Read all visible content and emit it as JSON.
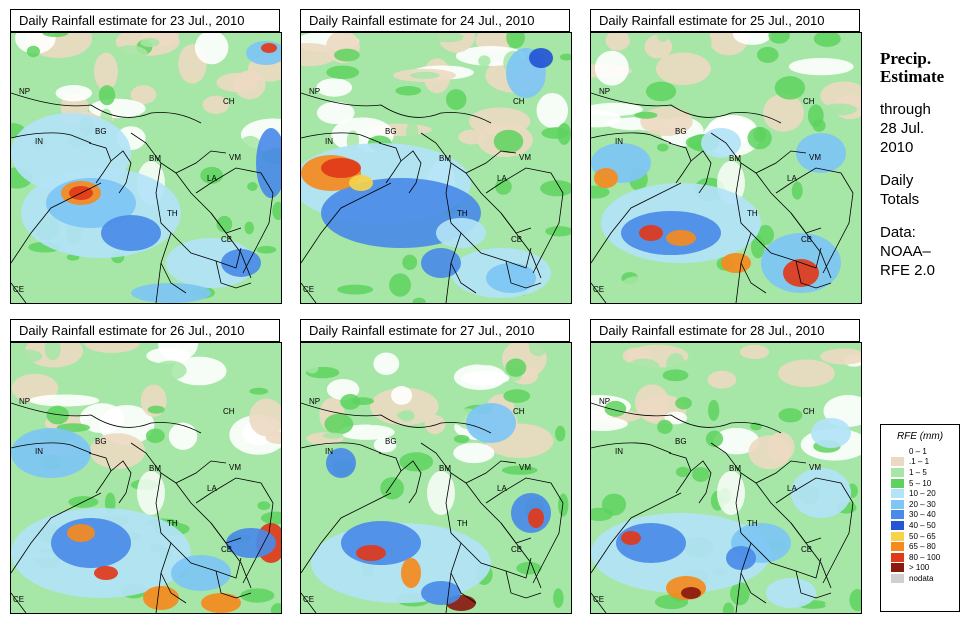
{
  "panels": [
    {
      "title": "Daily Rainfall estimate for  23 Jul., 2010",
      "pattern": 1
    },
    {
      "title": "Daily Rainfall estimate for  24 Jul., 2010",
      "pattern": 2
    },
    {
      "title": "Daily Rainfall estimate for  25 Jul., 2010",
      "pattern": 3
    },
    {
      "title": "Daily Rainfall estimate for  26 Jul., 2010",
      "pattern": 4
    },
    {
      "title": "Daily Rainfall estimate for  27 Jul., 2010",
      "pattern": 5
    },
    {
      "title": "Daily Rainfall estimate for  28 Jul., 2010",
      "pattern": 6
    }
  ],
  "map_labels": {
    "NP": "NP",
    "CH": "CH",
    "IN": "IN",
    "BG": "BG",
    "BM": "BM",
    "VM": "VM",
    "LA": "LA",
    "TH": "TH",
    "CB": "CB",
    "CE": "CE"
  },
  "side": {
    "line1": "Precip.",
    "line2": "Estimate",
    "line3": "through",
    "line4": "28 Jul.",
    "line5": "2010",
    "line6": "Daily",
    "line7": "Totals",
    "line8": "Data:",
    "line9": "NOAA–",
    "line10": "RFE 2.0"
  },
  "legend": {
    "title": "RFE (mm)",
    "items": [
      {
        "label": "0 – 1",
        "color": "#ffffff"
      },
      {
        "label": ".1 – 1",
        "color": "#ecd9c2"
      },
      {
        "label": "1 – 5",
        "color": "#a6e6a6"
      },
      {
        "label": "5 – 10",
        "color": "#5ed25e"
      },
      {
        "label": "10 – 20",
        "color": "#b3e3f7"
      },
      {
        "label": "20 – 30",
        "color": "#7ec6f5"
      },
      {
        "label": "30 – 40",
        "color": "#4a8be8"
      },
      {
        "label": "40 – 50",
        "color": "#2455d4"
      },
      {
        "label": "50 – 65",
        "color": "#f5d34a"
      },
      {
        "label": "65 – 80",
        "color": "#f58a1e"
      },
      {
        "label": "80 – 100",
        "color": "#e03a1a"
      },
      {
        "label": "> 100",
        "color": "#8a1a10"
      },
      {
        "label": "nodata",
        "color": "#cfcfcf"
      }
    ]
  },
  "palette": {
    "white": "#ffffff",
    "tan": "#ecd9c2",
    "lgreen": "#a6e6a6",
    "green": "#5ed25e",
    "lblue": "#b3e3f7",
    "blue": "#7ec6f5",
    "mblue": "#4a8be8",
    "dblue": "#2455d4",
    "yellow": "#f5d34a",
    "orange": "#f58a1e",
    "red": "#e03a1a",
    "dred": "#8a1a10"
  }
}
